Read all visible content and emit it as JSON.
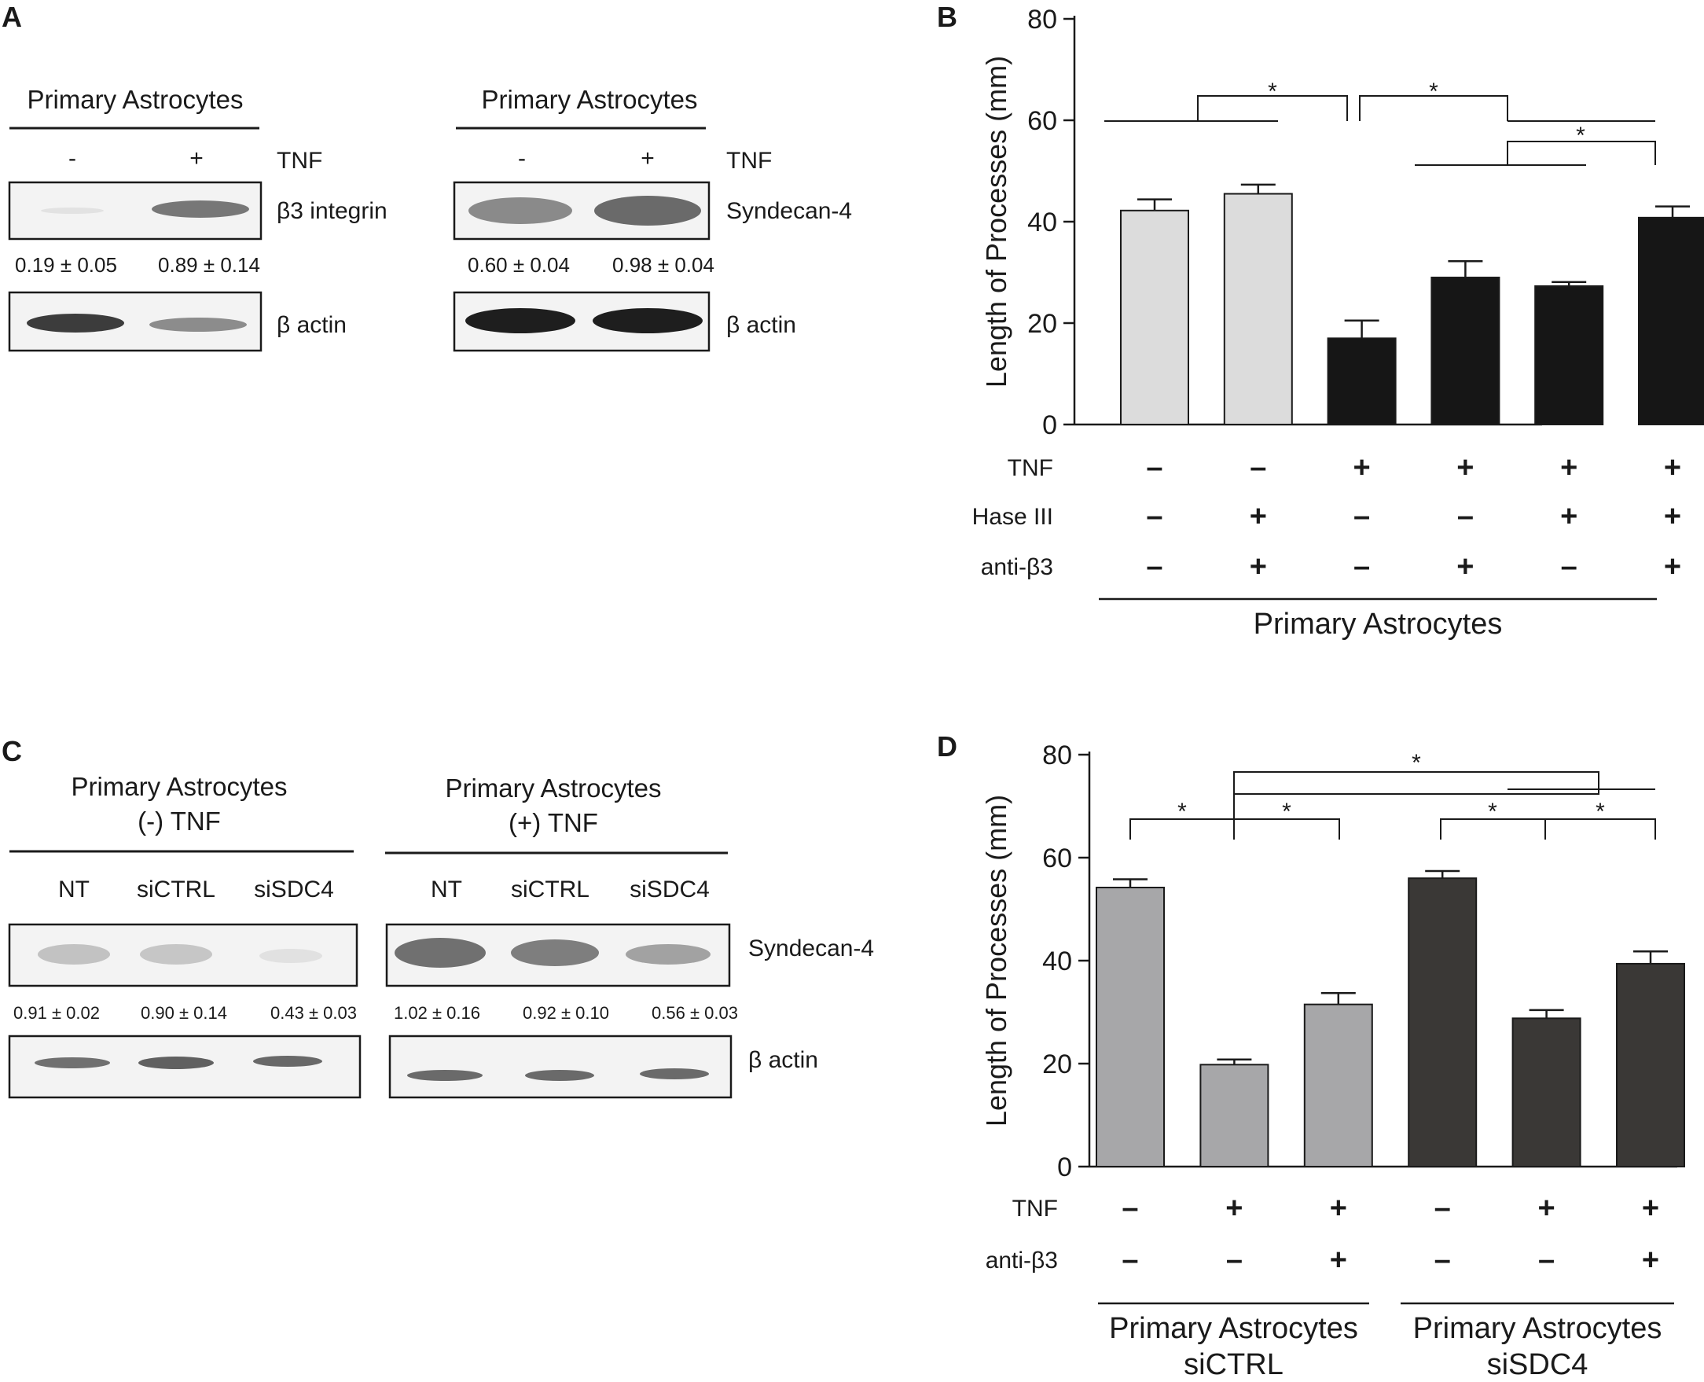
{
  "panels": {
    "A": {
      "label": "A",
      "blots": [
        {
          "title": "Primary Astrocytes",
          "tnf_label": "TNF",
          "lanes": [
            "-",
            "+"
          ],
          "target": "β3 integrin",
          "quant": [
            "0.19 ± 0.05",
            "0.89 ± 0.14"
          ],
          "loading": "β actin"
        },
        {
          "title": "Primary Astrocytes",
          "tnf_label": "TNF",
          "lanes": [
            "-",
            "+"
          ],
          "target": "Syndecan-4",
          "quant": [
            "0.60 ± 0.04",
            "0.98 ± 0.04"
          ],
          "loading": "β actin"
        }
      ]
    },
    "C": {
      "label": "C",
      "blots": [
        {
          "title_line1": "Primary Astrocytes",
          "title_line2": "(-) TNF",
          "lanes": [
            "NT",
            "siCTRL",
            "siSDC4"
          ],
          "quant": [
            "0.91 ± 0.02",
            "0.90 ± 0.14",
            "0.43 ± 0.03"
          ]
        },
        {
          "title_line1": "Primary Astrocytes",
          "title_line2": "(+) TNF",
          "lanes": [
            "NT",
            "siCTRL",
            "siSDC4"
          ],
          "quant": [
            "1.02 ± 0.16",
            "0.92 ± 0.10",
            "0.56 ± 0.03"
          ]
        }
      ],
      "target": "Syndecan-4",
      "loading": "β actin"
    }
  },
  "chart_data": [
    {
      "panel": "B",
      "type": "bar",
      "ylabel": "Length of Processes (mm)",
      "ylim": [
        0,
        80
      ],
      "yticks": [
        0,
        20,
        40,
        60,
        80
      ],
      "values": [
        42.2,
        45.5,
        17.0,
        29.0,
        27.3,
        40.8
      ],
      "errors": [
        2.2,
        1.8,
        3.5,
        3.2,
        0.8,
        2.2
      ],
      "colors": [
        "#dcdcdc",
        "#dcdcdc",
        "#161616",
        "#161616",
        "#161616",
        "#161616"
      ],
      "condition_rows": [
        {
          "label": "TNF",
          "values": [
            "–",
            "–",
            "+",
            "+",
            "+",
            "+"
          ]
        },
        {
          "label": "Hase III",
          "values": [
            "–",
            "+",
            "–",
            "–",
            "+",
            "+"
          ]
        },
        {
          "label": "anti-β3",
          "values": [
            "–",
            "+",
            "–",
            "+",
            "–",
            "+"
          ]
        }
      ],
      "group_labels": [
        {
          "line1": "Primary Astrocytes",
          "line2": ""
        }
      ],
      "significance_marker": "*"
    },
    {
      "panel": "D",
      "type": "bar",
      "ylabel": "Length of Processes (mm)",
      "ylim": [
        0,
        80
      ],
      "yticks": [
        0,
        20,
        40,
        60,
        80
      ],
      "values": [
        54.2,
        19.8,
        31.5,
        56.0,
        28.8,
        39.4
      ],
      "errors": [
        1.6,
        1.0,
        2.2,
        1.4,
        1.6,
        2.4
      ],
      "colors": [
        "#a7a7a9",
        "#a7a7a9",
        "#a7a7a9",
        "#3a3836",
        "#3a3836",
        "#3a3836"
      ],
      "condition_rows": [
        {
          "label": "TNF",
          "values": [
            "–",
            "+",
            "+",
            "–",
            "+",
            "+"
          ]
        },
        {
          "label": "anti-β3",
          "values": [
            "–",
            "–",
            "+",
            "–",
            "–",
            "+"
          ]
        }
      ],
      "group_labels": [
        {
          "line1": "Primary Astrocytes",
          "line2": "siCTRL"
        },
        {
          "line1": "Primary Astrocytes",
          "line2": "siSDC4"
        }
      ],
      "significance_marker": "*"
    }
  ]
}
